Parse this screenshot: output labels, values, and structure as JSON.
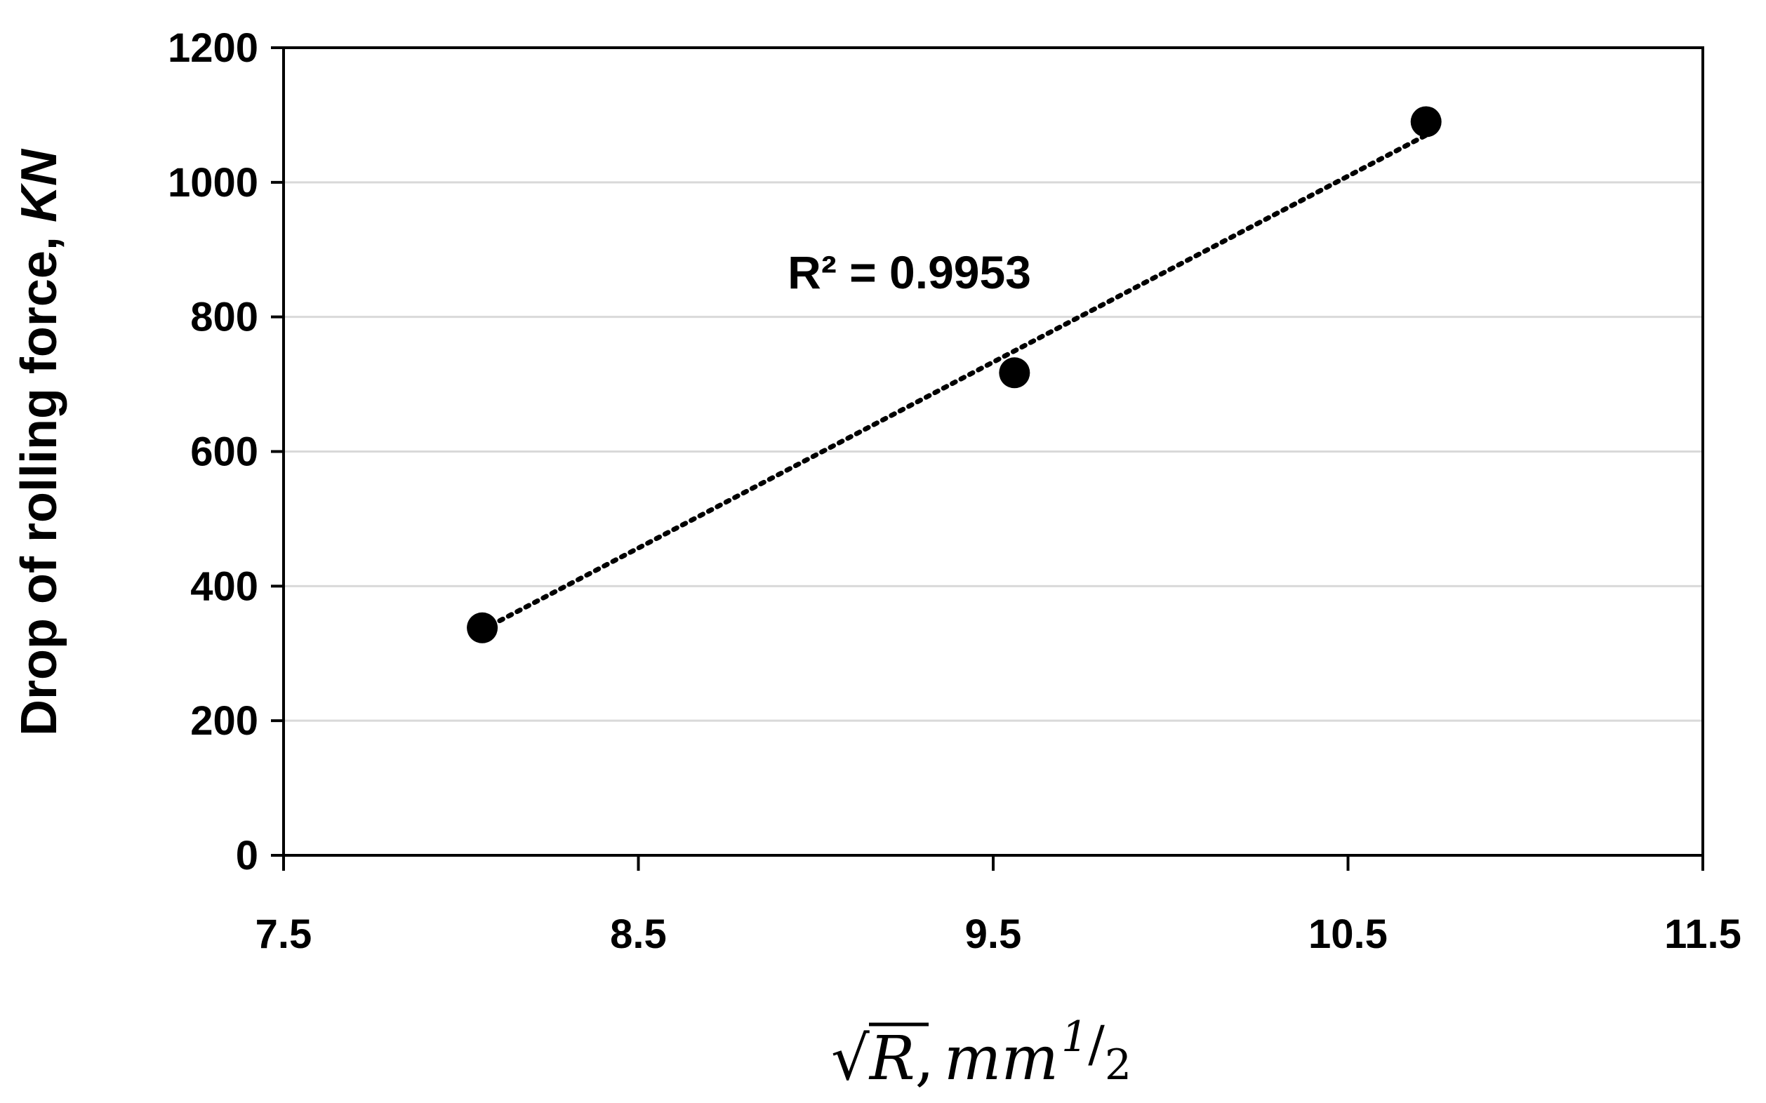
{
  "chart_data": {
    "type": "scatter",
    "xlabel": "√R, mm^1/2",
    "xlabel_parts": {
      "sqrt": "√",
      "var": "R",
      "comma": ",",
      "unit": "mm",
      "exp_num": "1",
      "exp_slash": "/",
      "exp_den": "2"
    },
    "ylabel": "Drop of rolling force, KN",
    "ylabel_parts": {
      "main": "Drop of rolling force, ",
      "unit": "KN"
    },
    "xlim": [
      7.5,
      11.5
    ],
    "ylim": [
      0,
      1200
    ],
    "x_ticks": [
      "7.5",
      "8.5",
      "9.5",
      "10.5",
      "11.5"
    ],
    "y_ticks": [
      "0",
      "200",
      "400",
      "600",
      "800",
      "1000",
      "1200"
    ],
    "grid": "horizontal",
    "series": [
      {
        "points": [
          {
            "x": 8.06,
            "y": 338
          },
          {
            "x": 9.56,
            "y": 717
          },
          {
            "x": 10.72,
            "y": 1090
          }
        ],
        "marker_color": "#000000"
      }
    ],
    "trendline": {
      "style": "dotted",
      "from": {
        "x": 8.06,
        "y": 335
      },
      "to": {
        "x": 10.72,
        "y": 1070
      },
      "color": "#000000"
    },
    "annotation": {
      "text": "R² = 0.9953",
      "x": 9.6,
      "y": 905
    },
    "colors": {
      "axis": "#000000",
      "grid": "#d9d9d9",
      "marker": "#000000"
    }
  }
}
